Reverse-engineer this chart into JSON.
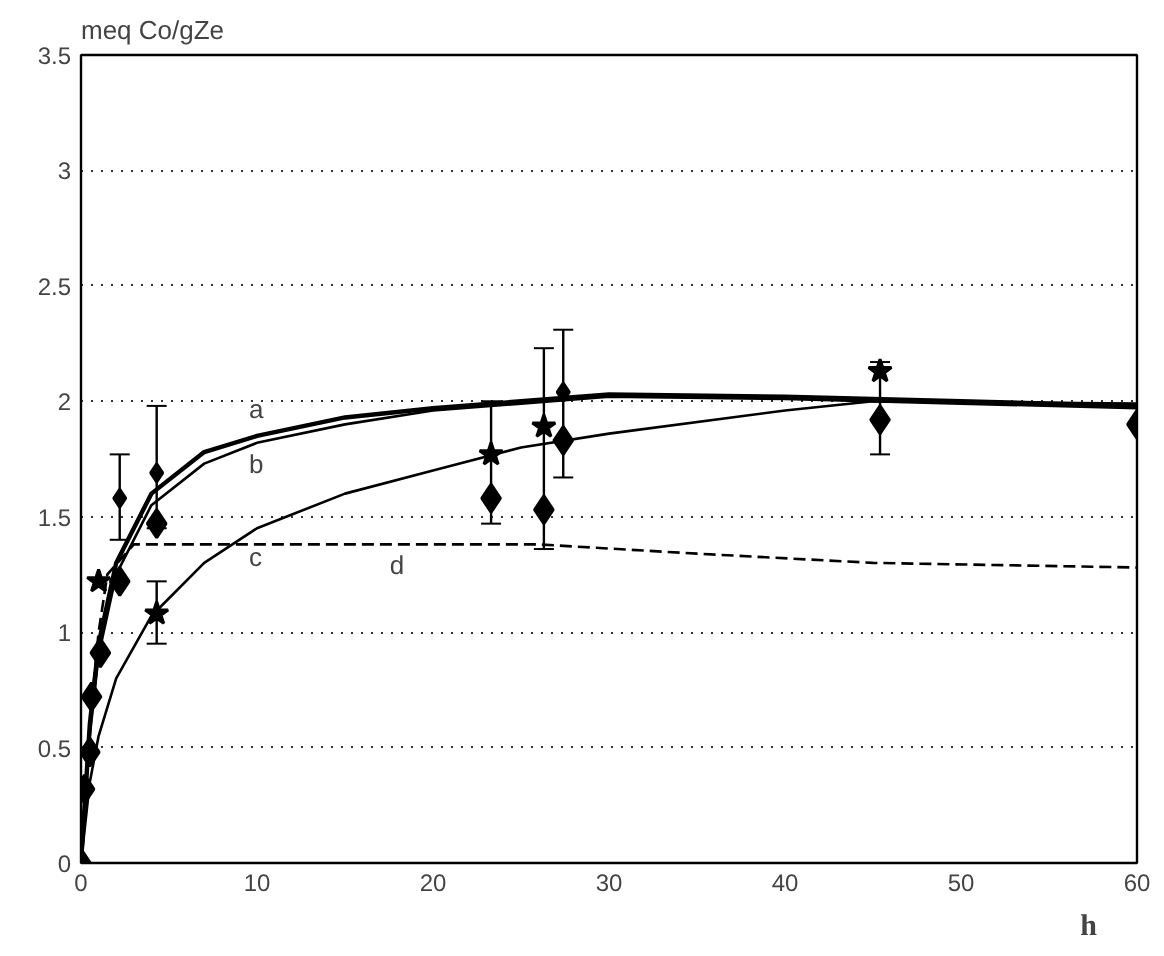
{
  "chart_data": {
    "type": "line",
    "ylabel": "meq Co/gZe",
    "xlabel": "h",
    "xlim": [
      0,
      60
    ],
    "ylim": [
      0,
      3.5
    ],
    "xticks": [
      0,
      10,
      20,
      30,
      40,
      50,
      60
    ],
    "yticks": [
      0,
      0.5,
      1,
      1.5,
      2,
      2.5,
      3,
      3.5
    ],
    "grid": "y",
    "series": [
      {
        "name": "a",
        "type": "line",
        "color": "#000000",
        "line_style": "solid",
        "x": [
          0,
          0.5,
          1,
          2,
          4,
          7,
          10,
          15,
          20,
          25,
          30,
          40,
          50,
          60
        ],
        "values": [
          0,
          0.6,
          0.95,
          1.3,
          1.6,
          1.78,
          1.85,
          1.93,
          1.97,
          2.0,
          2.03,
          2.02,
          2.0,
          1.98
        ]
      },
      {
        "name": "b",
        "type": "line",
        "color": "#000000",
        "line_style": "solid",
        "x": [
          0,
          0.5,
          1,
          2,
          4,
          7,
          10,
          15,
          20,
          25,
          30,
          40,
          50,
          60
        ],
        "values": [
          0,
          0.55,
          0.9,
          1.25,
          1.55,
          1.73,
          1.82,
          1.9,
          1.96,
          1.99,
          2.02,
          2.01,
          1.99,
          1.97
        ]
      },
      {
        "name": "c",
        "type": "line",
        "color": "#000000",
        "line_style": "solid",
        "x": [
          0,
          0.5,
          1,
          2,
          4,
          7,
          10,
          15,
          20,
          25,
          30,
          40,
          45,
          60
        ],
        "values": [
          0,
          0.35,
          0.55,
          0.8,
          1.07,
          1.3,
          1.45,
          1.6,
          1.7,
          1.8,
          1.86,
          1.96,
          2.0,
          1.99
        ]
      },
      {
        "name": "d",
        "type": "line",
        "color": "#000000",
        "line_style": "dashed",
        "x": [
          0,
          0.5,
          1,
          1.5,
          3,
          10,
          18,
          26,
          35,
          45,
          60
        ],
        "values": [
          0,
          0.6,
          1.0,
          1.25,
          1.38,
          1.38,
          1.38,
          1.38,
          1.34,
          1.3,
          1.28
        ]
      },
      {
        "type": "scatter",
        "marker": "diamond",
        "color": "#000000",
        "x": [
          0,
          0.2,
          0.5,
          0.6,
          1.1,
          2.2,
          4.3,
          23.3,
          26.3,
          27.4,
          45.4,
          60
        ],
        "values": [
          0,
          0.32,
          0.48,
          0.72,
          0.91,
          1.22,
          1.47,
          1.58,
          1.53,
          1.83,
          1.92,
          1.9
        ],
        "errors": [
          null,
          null,
          null,
          null,
          null,
          null,
          null,
          [
            1.47,
            2.0
          ],
          [
            1.36,
            2.23
          ],
          [
            1.67,
            2.31
          ],
          [
            1.77,
            2.17
          ],
          null
        ]
      },
      {
        "type": "scatter",
        "marker": "diamond",
        "color": "#000000",
        "x": [
          2.2,
          4.3,
          27.4
        ],
        "values": [
          1.58,
          1.69,
          2.04
        ],
        "errors": [
          [
            1.4,
            1.77
          ],
          [
            1.45,
            1.98
          ],
          null
        ]
      },
      {
        "type": "scatter",
        "marker": "star",
        "color": "#000000",
        "x": [
          1.0,
          4.3,
          23.3,
          26.3,
          45.4
        ],
        "values": [
          1.22,
          1.08,
          1.77,
          1.89,
          2.13
        ],
        "errors": [
          null,
          [
            0.95,
            1.22
          ],
          null,
          null,
          null
        ]
      }
    ]
  }
}
